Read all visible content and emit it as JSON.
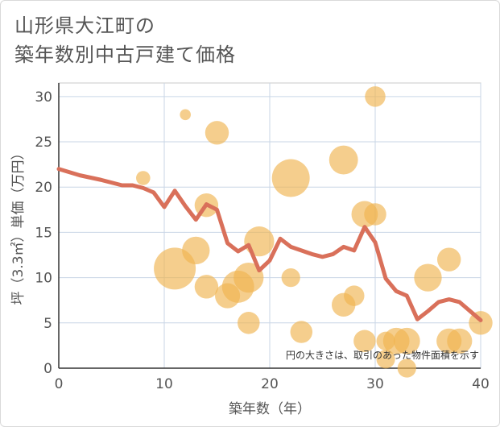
{
  "chart_data": {
    "type": "scatter",
    "title": [
      "山形県大江町の",
      "築年数別中古戸建て価格"
    ],
    "xlabel": "築年数（年）",
    "ylabel": "坪（3.3㎡）単価（万円）",
    "xlim": [
      0,
      40
    ],
    "ylim": [
      0,
      31.5
    ],
    "xticks": [
      0,
      10,
      20,
      30,
      40
    ],
    "yticks": [
      0,
      5,
      10,
      15,
      20,
      25,
      30
    ],
    "grid": true,
    "annotation": "円の大きさは、取引のあった物件面積を示す",
    "colors": {
      "bubble": "#f0b450",
      "line": "#d9705a"
    },
    "bubbles": [
      {
        "x": 8,
        "y": 21,
        "size": 2
      },
      {
        "x": 12,
        "y": 28,
        "size": 1
      },
      {
        "x": 11,
        "y": 11,
        "size": 25
      },
      {
        "x": 13,
        "y": 13,
        "size": 10
      },
      {
        "x": 14,
        "y": 18,
        "size": 7
      },
      {
        "x": 14,
        "y": 9,
        "size": 7
      },
      {
        "x": 15,
        "y": 26,
        "size": 7
      },
      {
        "x": 16,
        "y": 8,
        "size": 8
      },
      {
        "x": 17,
        "y": 9,
        "size": 14
      },
      {
        "x": 18,
        "y": 10,
        "size": 12
      },
      {
        "x": 18,
        "y": 5,
        "size": 6
      },
      {
        "x": 19,
        "y": 14,
        "size": 12
      },
      {
        "x": 22,
        "y": 21,
        "size": 20
      },
      {
        "x": 22,
        "y": 10,
        "size": 4
      },
      {
        "x": 23,
        "y": 4,
        "size": 6
      },
      {
        "x": 27,
        "y": 23,
        "size": 11
      },
      {
        "x": 27,
        "y": 7,
        "size": 7
      },
      {
        "x": 28,
        "y": 8,
        "size": 5
      },
      {
        "x": 29,
        "y": 17,
        "size": 9
      },
      {
        "x": 29,
        "y": 3,
        "size": 6
      },
      {
        "x": 30,
        "y": 30,
        "size": 5
      },
      {
        "x": 30,
        "y": 17,
        "size": 6
      },
      {
        "x": 31,
        "y": 3,
        "size": 4
      },
      {
        "x": 31,
        "y": 1,
        "size": 4
      },
      {
        "x": 32,
        "y": 3,
        "size": 9
      },
      {
        "x": 33,
        "y": 3,
        "size": 9
      },
      {
        "x": 33,
        "y": 0,
        "size": 4
      },
      {
        "x": 35,
        "y": 10,
        "size": 10
      },
      {
        "x": 37,
        "y": 12,
        "size": 7
      },
      {
        "x": 37,
        "y": 3,
        "size": 8
      },
      {
        "x": 38,
        "y": 3,
        "size": 8
      },
      {
        "x": 40,
        "y": 5,
        "size": 7
      }
    ],
    "trend_line": {
      "x": [
        0,
        2,
        4,
        6,
        7,
        8,
        9,
        10,
        11,
        12,
        13,
        14,
        15,
        16,
        17,
        18,
        19,
        20,
        21,
        22,
        23,
        24,
        25,
        26,
        27,
        28,
        29,
        30,
        31,
        32,
        33,
        34,
        35,
        36,
        37,
        38,
        39,
        40
      ],
      "y": [
        22,
        21.3,
        20.8,
        20.2,
        20.2,
        19.9,
        19.4,
        17.8,
        19.6,
        17.9,
        16.4,
        18.1,
        17.5,
        13.8,
        12.9,
        13.6,
        10.8,
        11.9,
        14.3,
        13.4,
        13.0,
        12.6,
        12.3,
        12.6,
        13.4,
        13.0,
        15.6,
        13.9,
        9.9,
        8.5,
        8.0,
        5.4,
        6.3,
        7.3,
        7.6,
        7.3,
        6.3,
        5.3
      ]
    }
  }
}
